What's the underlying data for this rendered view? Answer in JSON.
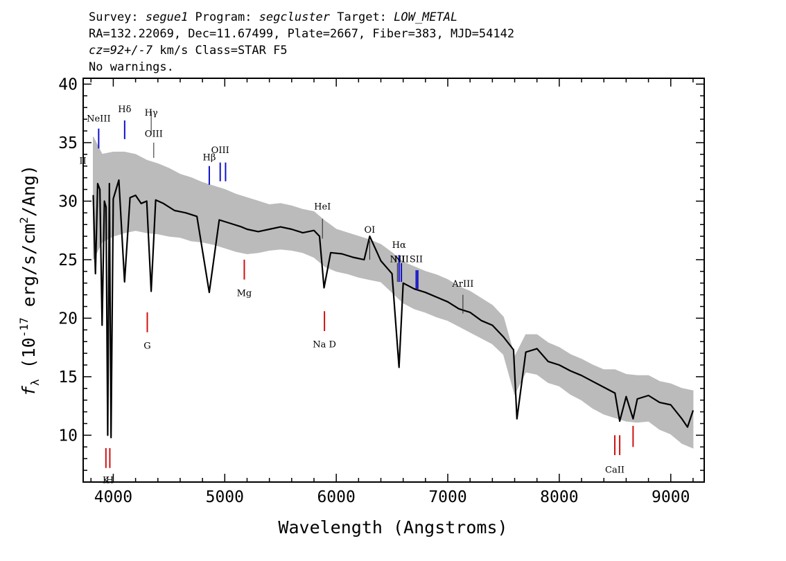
{
  "header": {
    "line1": [
      {
        "text": "Survey: ",
        "italic": false
      },
      {
        "text": "segue1",
        "italic": true
      },
      {
        "text": " Program: ",
        "italic": false
      },
      {
        "text": "segcluster",
        "italic": true
      },
      {
        "text": " Target: ",
        "italic": false
      },
      {
        "text": "LOW_METAL",
        "italic": true
      }
    ],
    "line2": "RA=132.22069, Dec=11.67499, Plate=2667, Fiber=383, MJD=54142",
    "line3": [
      {
        "text": "cz=92+/-7",
        "italic": true
      },
      {
        "text": " km/s Class=STAR F5",
        "italic": false
      }
    ],
    "line4": "No warnings."
  },
  "chart_data": {
    "type": "line",
    "xlabel": "Wavelength (Angstroms)",
    "ylabel_parts": [
      "f",
      "λ",
      " (10",
      "-17",
      " erg/s/cm",
      "2",
      "/Ang)"
    ],
    "xlim": [
      3730,
      9300
    ],
    "ylim": [
      6.0,
      40.5
    ],
    "x_ticks": [
      4000,
      5000,
      6000,
      7000,
      8000,
      9000
    ],
    "y_ticks": [
      10,
      15,
      20,
      25,
      30,
      35,
      40
    ],
    "colors": {
      "flux": "#000000",
      "error": "#bbbbbb",
      "emission": "#1010c8",
      "absorption": "#d01010",
      "sky": "#202020"
    },
    "series": [
      {
        "style": "flux",
        "x": [
          3820,
          3840,
          3860,
          3880,
          3900,
          3920,
          3935,
          3950,
          3965,
          3980,
          4000,
          4050,
          4101,
          4150,
          4200,
          4250,
          4300,
          4340,
          4380,
          4450,
          4550,
          4650,
          4750,
          4861,
          4950,
          5050,
          5150,
          5200,
          5300,
          5400,
          5500,
          5600,
          5700,
          5800,
          5850,
          5890,
          5950,
          6050,
          6150,
          6250,
          6300,
          6400,
          6500,
          6563,
          6600,
          6700,
          6800,
          6900,
          7000,
          7100,
          7200,
          7300,
          7400,
          7500,
          7590,
          7620,
          7700,
          7800,
          7900,
          8000,
          8100,
          8200,
          8300,
          8400,
          8500,
          8542,
          8600,
          8662,
          8700,
          8800,
          8900,
          9000,
          9100,
          9150,
          9200
        ],
        "y": [
          30.5,
          23.8,
          31.5,
          31.0,
          19.4,
          30.0,
          29.5,
          10.0,
          31.5,
          9.8,
          30.2,
          31.8,
          23.1,
          30.3,
          30.5,
          29.8,
          30.0,
          22.3,
          30.1,
          29.8,
          29.2,
          29.0,
          28.7,
          22.2,
          28.4,
          28.1,
          27.8,
          27.6,
          27.4,
          27.6,
          27.8,
          27.6,
          27.3,
          27.5,
          27.0,
          22.6,
          25.6,
          25.5,
          25.2,
          25.0,
          27.0,
          24.9,
          23.8,
          15.8,
          23.0,
          22.5,
          22.2,
          21.8,
          21.4,
          20.8,
          20.5,
          19.8,
          19.4,
          18.4,
          17.3,
          11.4,
          17.1,
          17.4,
          16.3,
          16.0,
          15.5,
          15.1,
          14.6,
          14.1,
          13.6,
          11.2,
          13.3,
          11.4,
          13.1,
          13.4,
          12.8,
          12.6,
          11.4,
          10.7,
          12.1
        ]
      },
      {
        "style": "error",
        "x": [
          3820,
          3900,
          4000,
          4100,
          4200,
          4300,
          4400,
          4500,
          4600,
          4700,
          4800,
          4900,
          5000,
          5100,
          5200,
          5300,
          5400,
          5500,
          5600,
          5700,
          5800,
          5900,
          6000,
          6100,
          6200,
          6300,
          6400,
          6500,
          6600,
          6700,
          6800,
          6900,
          7000,
          7100,
          7200,
          7300,
          7400,
          7500,
          7600,
          7700,
          7800,
          7900,
          8000,
          8100,
          8200,
          8300,
          8400,
          8500,
          8600,
          8700,
          8800,
          8900,
          9000,
          9100,
          9200
        ],
        "y_low": [
          25.0,
          26.5,
          27.0,
          27.3,
          27.5,
          27.3,
          27.2,
          27.0,
          26.9,
          26.6,
          26.5,
          26.3,
          26.0,
          25.7,
          25.5,
          25.6,
          25.8,
          25.9,
          25.8,
          25.6,
          25.2,
          24.4,
          24.0,
          23.8,
          23.5,
          23.3,
          23.1,
          22.2,
          21.3,
          20.8,
          20.5,
          20.1,
          19.8,
          19.3,
          18.8,
          18.3,
          17.8,
          16.9,
          13.5,
          15.4,
          15.2,
          14.5,
          14.2,
          13.5,
          13.0,
          12.3,
          11.8,
          11.5,
          11.2,
          11.1,
          11.2,
          10.5,
          10.1,
          9.3,
          8.9
        ],
        "y_high": [
          35.5,
          34.0,
          34.2,
          34.2,
          34.0,
          33.5,
          33.2,
          32.8,
          32.3,
          32.0,
          31.6,
          31.3,
          31.0,
          30.6,
          30.3,
          30.0,
          29.7,
          29.8,
          29.6,
          29.3,
          29.1,
          28.3,
          27.6,
          27.3,
          27.0,
          26.7,
          26.3,
          25.6,
          24.8,
          24.4,
          24.0,
          23.7,
          23.3,
          22.7,
          22.3,
          21.7,
          21.1,
          20.1,
          16.7,
          18.6,
          18.6,
          17.9,
          17.5,
          16.9,
          16.5,
          16.0,
          15.6,
          15.6,
          15.2,
          15.1,
          15.1,
          14.6,
          14.4,
          14.0,
          13.8
        ]
      }
    ],
    "emission_lines": [
      {
        "label": "NeIII",
        "x": 3869,
        "y_top": 36.2,
        "y_bottom": 34.5,
        "label_y": 36.8,
        "color": "emission"
      },
      {
        "label": "Hδ",
        "x": 4102,
        "y_top": 36.9,
        "y_bottom": 35.3,
        "label_y": 37.6,
        "color": "emission"
      },
      {
        "label": "Hγ",
        "x": 4340,
        "y_top": 37.7,
        "y_bottom": 35.7,
        "label_y": 37.3,
        "color": "sky"
      },
      {
        "label": "OIII",
        "x": 4363,
        "y_top": 35.0,
        "y_bottom": 33.7,
        "label_y": 35.5,
        "color": "sky"
      },
      {
        "label": "Hβ",
        "x": 4861,
        "y_top": 33.0,
        "y_bottom": 31.4,
        "label_y": 33.5,
        "color": "emission"
      },
      {
        "label": "OIII",
        "x": 4959,
        "y_top": 33.3,
        "y_bottom": 31.7,
        "label_y": 34.1,
        "color": "emission"
      },
      {
        "label": "",
        "x": 5007,
        "y_top": 33.3,
        "y_bottom": 31.7,
        "label_y": 0,
        "color": "emission"
      },
      {
        "label": "HeI",
        "x": 5876,
        "y_top": 28.5,
        "y_bottom": 26.8,
        "label_y": 29.3,
        "color": "sky"
      },
      {
        "label": "OI",
        "x": 6300,
        "y_top": 26.6,
        "y_bottom": 25.0,
        "label_y": 27.3,
        "color": "sky"
      },
      {
        "label": "NII",
        "x": 6548,
        "y_top": 24.7,
        "y_bottom": 23.1,
        "label_y": 24.8,
        "color": "sky"
      },
      {
        "label": "Hα",
        "x": 6563,
        "y_top": 25.4,
        "y_bottom": 23.1,
        "label_y": 26.0,
        "color": "emission"
      },
      {
        "label": "NII",
        "x": 6584,
        "y_top": 24.7,
        "y_bottom": 23.1,
        "label_y": 24.8,
        "color": "emission"
      },
      {
        "label": "SII",
        "x": 6717,
        "y_top": 24.1,
        "y_bottom": 22.5,
        "label_y": 24.8,
        "color": "emission"
      },
      {
        "label": "",
        "x": 6731,
        "y_top": 24.1,
        "y_bottom": 22.5,
        "label_y": 0,
        "color": "emission"
      },
      {
        "label": "ArIII",
        "x": 7136,
        "y_top": 22.0,
        "y_bottom": 20.4,
        "label_y": 22.7,
        "color": "sky"
      },
      {
        "label": "II",
        "x": 3727,
        "y_top": 33.0,
        "y_bottom": 31.4,
        "label_y": 33.2,
        "color": "sky"
      }
    ],
    "absorption_lines": [
      {
        "label": "K",
        "x": 3934,
        "y_top": 8.9,
        "y_bottom": 7.2,
        "label_y": 5.9,
        "color": "absorption"
      },
      {
        "label": "H",
        "x": 3969,
        "y_top": 8.9,
        "y_bottom": 7.2,
        "label_y": 5.9,
        "color": "absorption"
      },
      {
        "label": "G",
        "x": 4305,
        "y_top": 20.5,
        "y_bottom": 18.8,
        "label_y": 17.4,
        "color": "absorption"
      },
      {
        "label": "Mg",
        "x": 5175,
        "y_top": 25.0,
        "y_bottom": 23.3,
        "label_y": 21.9,
        "color": "absorption"
      },
      {
        "label": "Na D",
        "x": 5894,
        "y_top": 20.6,
        "y_bottom": 18.9,
        "label_y": 17.5,
        "color": "absorption"
      },
      {
        "label": "CaII",
        "x": 8498,
        "y_top": 10.0,
        "y_bottom": 8.3,
        "label_y": 6.8,
        "color": "absorption"
      },
      {
        "label": "",
        "x": 8542,
        "y_top": 10.0,
        "y_bottom": 8.3,
        "label_y": 0,
        "color": "absorption"
      },
      {
        "label": "",
        "x": 8662,
        "y_top": 10.8,
        "y_bottom": 9.0,
        "label_y": 0,
        "color": "absorption"
      }
    ]
  }
}
